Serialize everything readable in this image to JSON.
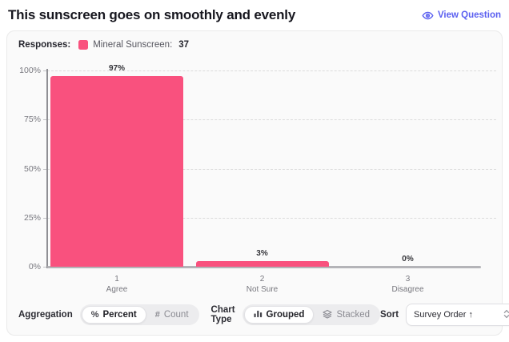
{
  "page": {
    "title": "This sunscreen goes on smoothly and evenly",
    "view_question_label": "View Question"
  },
  "legend": {
    "responses_label": "Responses:",
    "series_label": "Mineral Sunscreen:",
    "series_count": "37"
  },
  "chart_data": {
    "type": "bar",
    "title": "This sunscreen goes on smoothly and evenly",
    "series": [
      {
        "name": "Mineral Sunscreen",
        "respondent_count": 37,
        "values": [
          97,
          3,
          0
        ]
      }
    ],
    "value_suffix": "%",
    "categories": [
      {
        "line1": "1",
        "line2": "Agree"
      },
      {
        "line1": "2",
        "line2": "Not Sure"
      },
      {
        "line1": "3",
        "line2": "Disagree"
      }
    ],
    "yticks": [
      0,
      25,
      50,
      75,
      100
    ],
    "ytick_suffix": "%",
    "ylim": [
      0,
      100
    ],
    "grid": "horizontal-dashed",
    "legend_position": "top-left",
    "bar_color": "#f9517e"
  },
  "toolbar": {
    "aggregation_label": "Aggregation",
    "percent_glyph": "%",
    "percent_option": "Percent",
    "count_glyph": "#",
    "count_option": "Count",
    "chart_type_label": "Chart Type",
    "grouped_option": "Grouped",
    "stacked_option": "Stacked",
    "sort_label": "Sort",
    "sort_value": "Survey Order ↑"
  },
  "colors": {
    "accent": "#5a5ff0",
    "bar_pink": "#f9517e",
    "card_bg": "#fafafa",
    "card_border": "#eaeaea",
    "title_text": "#17171f",
    "muted_text": "#77777e"
  }
}
